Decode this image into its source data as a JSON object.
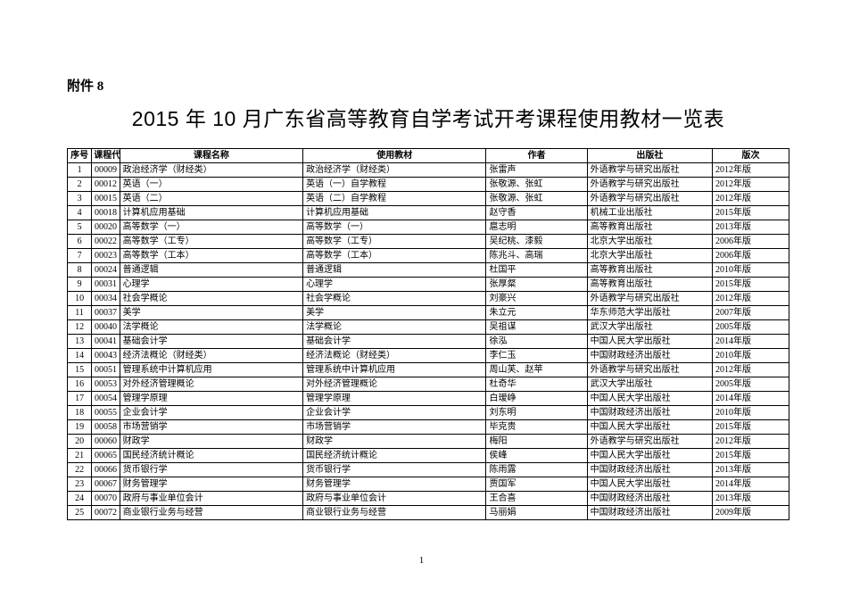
{
  "attachment_label": "附件 8",
  "title": "2015 年 10 月广东省高等教育自学考试开考课程使用教材一览表",
  "page_number": "1",
  "table": {
    "columns": [
      {
        "key": "seq",
        "label": "序号"
      },
      {
        "key": "code",
        "label": "课程代码"
      },
      {
        "key": "name",
        "label": "课程名称"
      },
      {
        "key": "book",
        "label": "使用教材"
      },
      {
        "key": "author",
        "label": "作者"
      },
      {
        "key": "pub",
        "label": "出版社"
      },
      {
        "key": "ver",
        "label": "版次"
      }
    ],
    "rows": [
      [
        "1",
        "00009",
        "政治经济学（财经类）",
        "政治经济学（财经类）",
        "张雷声",
        "外语教学与研究出版社",
        "2012年版"
      ],
      [
        "2",
        "00012",
        "英语（一）",
        "英语（一）自学教程",
        "张敬源、张虹",
        "外语教学与研究出版社",
        "2012年版"
      ],
      [
        "3",
        "00015",
        "英语（二）",
        "英语（二）自学教程",
        "张敬源、张虹",
        "外语教学与研究出版社",
        "2012年版"
      ],
      [
        "4",
        "00018",
        "计算机应用基础",
        "计算机应用基础",
        "赵守香",
        "机械工业出版社",
        "2015年版"
      ],
      [
        "5",
        "00020",
        "高等数学（一）",
        "高等数学（一）",
        "扈志明",
        "高等教育出版社",
        "2013年版"
      ],
      [
        "6",
        "00022",
        "高等数学（工专）",
        "高等数学（工专）",
        "吴纪桃、漆毅",
        "北京大学出版社",
        "2006年版"
      ],
      [
        "7",
        "00023",
        "高等数学（工本）",
        "高等数学（工本）",
        "陈兆斗、高瑞",
        "北京大学出版社",
        "2006年版"
      ],
      [
        "8",
        "00024",
        "普通逻辑",
        "普通逻辑",
        "杜国平",
        "高等教育出版社",
        "2010年版"
      ],
      [
        "9",
        "00031",
        "心理学",
        "心理学",
        "张厚粲",
        "高等教育出版社",
        "2015年版"
      ],
      [
        "10",
        "00034",
        "社会学概论",
        "社会学概论",
        "刘豪兴",
        "外语教学与研究出版社",
        "2012年版"
      ],
      [
        "11",
        "00037",
        "美学",
        "美学",
        "朱立元",
        "华东师范大学出版社",
        "2007年版"
      ],
      [
        "12",
        "00040",
        "法学概论",
        "法学概论",
        "吴祖谋",
        "武汉大学出版社",
        "2005年版"
      ],
      [
        "13",
        "00041",
        "基础会计学",
        "基础会计学",
        "徐泓",
        "中国人民大学出版社",
        "2014年版"
      ],
      [
        "14",
        "00043",
        "经济法概论（财经类）",
        "经济法概论（财经类）",
        "李仁玉",
        "中国财政经济出版社",
        "2010年版"
      ],
      [
        "15",
        "00051",
        "管理系统中计算机应用",
        "管理系统中计算机应用",
        "周山芙、赵苹",
        "外语教学与研究出版社",
        "2012年版"
      ],
      [
        "16",
        "00053",
        "对外经济管理概论",
        "对外经济管理概论",
        "杜奇华",
        "武汉大学出版社",
        "2005年版"
      ],
      [
        "17",
        "00054",
        "管理学原理",
        "管理学原理",
        "白瑷峥",
        "中国人民大学出版社",
        "2014年版"
      ],
      [
        "18",
        "00055",
        "企业会计学",
        "企业会计学",
        "刘东明",
        "中国财政经济出版社",
        "2010年版"
      ],
      [
        "19",
        "00058",
        "市场营销学",
        "市场营销学",
        "毕克贵",
        "中国人民大学出版社",
        "2015年版"
      ],
      [
        "20",
        "00060",
        "财政学",
        "财政学",
        "梅阳",
        "外语教学与研究出版社",
        "2012年版"
      ],
      [
        "21",
        "00065",
        "国民经济统计概论",
        "国民经济统计概论",
        "侯峰",
        "中国人民大学出版社",
        "2015年版"
      ],
      [
        "22",
        "00066",
        "货币银行学",
        "货币银行学",
        "陈雨露",
        "中国财政经济出版社",
        "2013年版"
      ],
      [
        "23",
        "00067",
        "财务管理学",
        "财务管理学",
        "贾国军",
        "中国人民大学出版社",
        "2014年版"
      ],
      [
        "24",
        "00070",
        "政府与事业单位会计",
        "政府与事业单位会计",
        "王合喜",
        "中国财政经济出版社",
        "2013年版"
      ],
      [
        "25",
        "00072",
        "商业银行业务与经营",
        "商业银行业务与经营",
        "马丽娟",
        "中国财政经济出版社",
        "2009年版"
      ]
    ]
  },
  "style": {
    "background_color": "#ffffff",
    "border_color": "#000000",
    "title_fontsize": 23,
    "body_fontsize": 10,
    "header_font_weight": "bold",
    "font_family_title": "Microsoft YaHei",
    "font_family_body": "SimSun"
  }
}
